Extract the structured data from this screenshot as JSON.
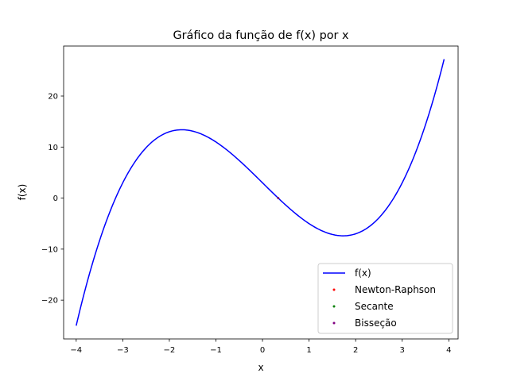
{
  "chart_data": {
    "type": "line",
    "title": "Gráfico da função de f(x) por x",
    "xlabel": "x",
    "ylabel": "f(x)",
    "xlim": [
      -4.27,
      4.2
    ],
    "ylim": [
      -27.6,
      29.8
    ],
    "xticks": [
      -4,
      -3,
      -2,
      -1,
      0,
      1,
      2,
      3,
      4
    ],
    "xtick_labels": [
      "−4",
      "−3",
      "−2",
      "−1",
      "0",
      "1",
      "2",
      "3",
      "4"
    ],
    "yticks": [
      -20,
      -10,
      0,
      10,
      20
    ],
    "ytick_labels": [
      "−20",
      "−10",
      "0",
      "10",
      "20"
    ],
    "grid": false,
    "legend_position": "lower-right",
    "series": [
      {
        "name": "f(x)",
        "kind": "line",
        "color": "#0000ff",
        "x_range": [
          -4,
          3.9
        ],
        "function": "x^3 - 9x + 3",
        "key_points": [
          [
            -4,
            -25
          ],
          [
            -1.73,
            13.39
          ],
          [
            0,
            3
          ],
          [
            1.73,
            -7.39
          ],
          [
            3.9,
            27.22
          ]
        ]
      },
      {
        "name": "Newton-Raphson",
        "kind": "scatter",
        "color": "#ff0000",
        "points": [
          [
            0.3376,
            0.0
          ]
        ]
      },
      {
        "name": "Secante",
        "kind": "scatter",
        "color": "#008000",
        "points": [
          [
            0.3376,
            0.0
          ]
        ]
      },
      {
        "name": "Bisseção",
        "kind": "scatter",
        "color": "#800080",
        "points": [
          [
            0.3376,
            0.0
          ]
        ]
      }
    ]
  }
}
